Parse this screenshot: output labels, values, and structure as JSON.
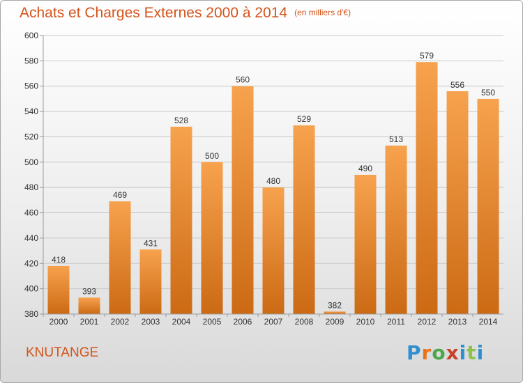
{
  "page": {
    "title": "Achats et Charges Externes 2000 à 2014",
    "subtitle": "(en milliers d'€)",
    "commune": "KNUTANGE",
    "brand": "Proxiti"
  },
  "colors": {
    "bar_light": "#f7a24e",
    "bar_dark": "#cc6a14",
    "title": "#d4531a",
    "axis": "#9a9a9a",
    "grid": "#c8c8c8"
  },
  "chart_data": {
    "type": "bar",
    "title": "Achats et Charges Externes 2000 à 2014",
    "subtitle": "(en milliers d'€)",
    "xlabel": "",
    "ylabel": "",
    "categories": [
      "2000",
      "2001",
      "2002",
      "2003",
      "2004",
      "2005",
      "2006",
      "2007",
      "2008",
      "2009",
      "2010",
      "2011",
      "2012",
      "2013",
      "2014"
    ],
    "values": [
      418,
      393,
      469,
      431,
      528,
      500,
      560,
      480,
      529,
      382,
      490,
      513,
      579,
      556,
      550
    ],
    "data_labels": [
      "418",
      "393",
      "469",
      "431",
      "528",
      "500",
      "560",
      "480",
      "529",
      "382",
      "490",
      "513",
      "579",
      "556",
      "550"
    ],
    "ylim": [
      380,
      600
    ],
    "yticks": [
      "380",
      "400",
      "420",
      "440",
      "460",
      "480",
      "500",
      "520",
      "540",
      "560",
      "580",
      "600"
    ],
    "grid": true,
    "legend": "none"
  }
}
